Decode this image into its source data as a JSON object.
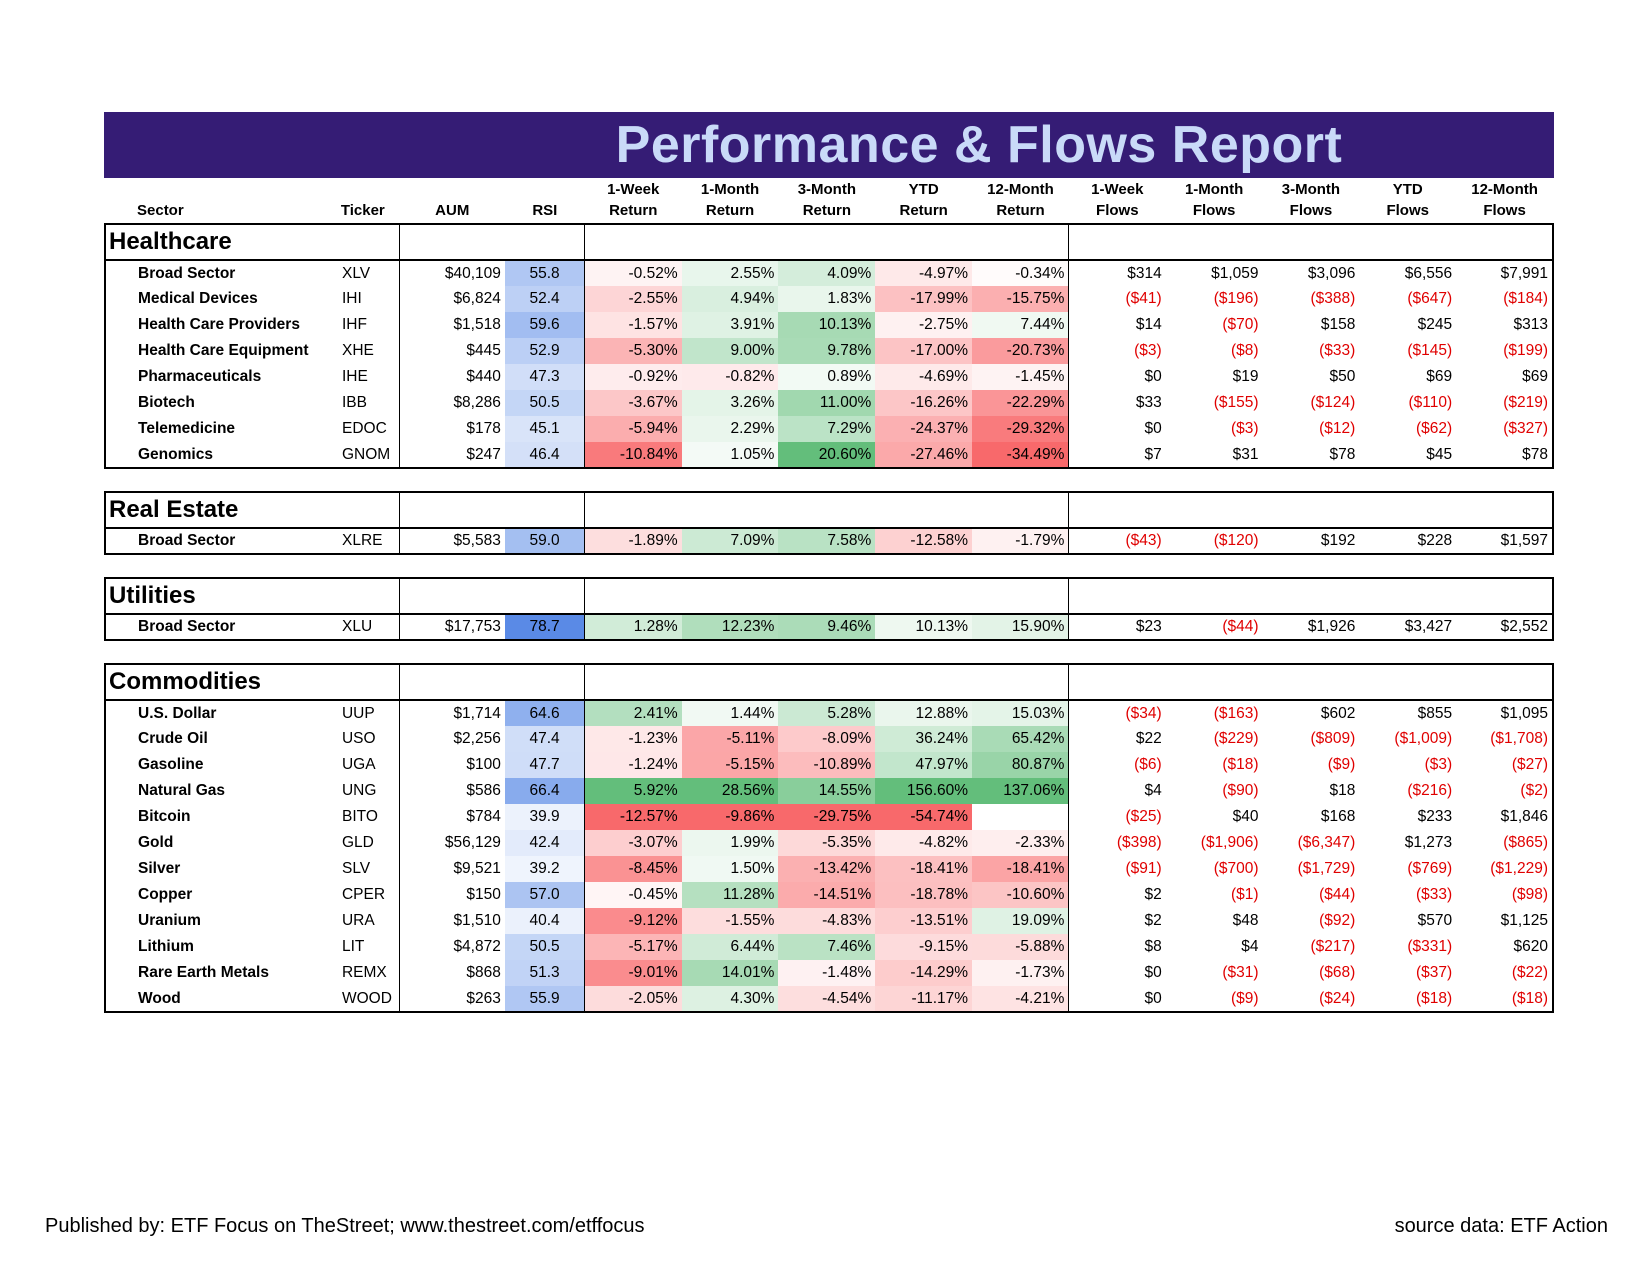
{
  "title": "Performance & Flows Report",
  "columns": [
    "Sector",
    "Ticker",
    "AUM",
    "RSI",
    "1-Week|Return",
    "1-Month|Return",
    "3-Month|Return",
    "YTD|Return",
    "12-Month|Return",
    "1-Week|Flows",
    "1-Month|Flows",
    "3-Month|Flows",
    "YTD|Flows",
    "12-Month|Flows"
  ],
  "groups": [
    {
      "name": "Healthcare",
      "rows": [
        [
          "Broad Sector",
          "XLV",
          "$40,109",
          "55.8",
          "-0.52%",
          "2.55%",
          "4.09%",
          "-4.97%",
          "-0.34%",
          "$314",
          "$1,059",
          "$3,096",
          "$6,556",
          "$7,991"
        ],
        [
          "Medical Devices",
          "IHI",
          "$6,824",
          "52.4",
          "-2.55%",
          "4.94%",
          "1.83%",
          "-17.99%",
          "-15.75%",
          "($41)",
          "($196)",
          "($388)",
          "($647)",
          "($184)"
        ],
        [
          "Health Care Providers",
          "IHF",
          "$1,518",
          "59.6",
          "-1.57%",
          "3.91%",
          "10.13%",
          "-2.75%",
          "7.44%",
          "$14",
          "($70)",
          "$158",
          "$245",
          "$313"
        ],
        [
          "Health Care Equipment",
          "XHE",
          "$445",
          "52.9",
          "-5.30%",
          "9.00%",
          "9.78%",
          "-17.00%",
          "-20.73%",
          "($3)",
          "($8)",
          "($33)",
          "($145)",
          "($199)"
        ],
        [
          "Pharmaceuticals",
          "IHE",
          "$440",
          "47.3",
          "-0.92%",
          "-0.82%",
          "0.89%",
          "-4.69%",
          "-1.45%",
          "$0",
          "$19",
          "$50",
          "$69",
          "$69"
        ],
        [
          "Biotech",
          "IBB",
          "$8,286",
          "50.5",
          "-3.67%",
          "3.26%",
          "11.00%",
          "-16.26%",
          "-22.29%",
          "$33",
          "($155)",
          "($124)",
          "($110)",
          "($219)"
        ],
        [
          "Telemedicine",
          "EDOC",
          "$178",
          "45.1",
          "-5.94%",
          "2.29%",
          "7.29%",
          "-24.37%",
          "-29.32%",
          "$0",
          "($3)",
          "($12)",
          "($62)",
          "($327)"
        ],
        [
          "Genomics",
          "GNOM",
          "$247",
          "46.4",
          "-10.84%",
          "1.05%",
          "20.60%",
          "-27.46%",
          "-34.49%",
          "$7",
          "$31",
          "$78",
          "$45",
          "$78"
        ]
      ]
    },
    {
      "name": "Real Estate",
      "rows": [
        [
          "Broad Sector",
          "XLRE",
          "$5,583",
          "59.0",
          "-1.89%",
          "7.09%",
          "7.58%",
          "-12.58%",
          "-1.79%",
          "($43)",
          "($120)",
          "$192",
          "$228",
          "$1,597"
        ]
      ]
    },
    {
      "name": "Utilities",
      "rows": [
        [
          "Broad Sector",
          "XLU",
          "$17,753",
          "78.7",
          "1.28%",
          "12.23%",
          "9.46%",
          "10.13%",
          "15.90%",
          "$23",
          "($44)",
          "$1,926",
          "$3,427",
          "$2,552"
        ]
      ]
    },
    {
      "name": "Commodities",
      "rows": [
        [
          "U.S. Dollar",
          "UUP",
          "$1,714",
          "64.6",
          "2.41%",
          "1.44%",
          "5.28%",
          "12.88%",
          "15.03%",
          "($34)",
          "($163)",
          "$602",
          "$855",
          "$1,095"
        ],
        [
          "Crude Oil",
          "USO",
          "$2,256",
          "47.4",
          "-1.23%",
          "-5.11%",
          "-8.09%",
          "36.24%",
          "65.42%",
          "$22",
          "($229)",
          "($809)",
          "($1,009)",
          "($1,708)"
        ],
        [
          "Gasoline",
          "UGA",
          "$100",
          "47.7",
          "-1.24%",
          "-5.15%",
          "-10.89%",
          "47.97%",
          "80.87%",
          "($6)",
          "($18)",
          "($9)",
          "($3)",
          "($27)"
        ],
        [
          "Natural Gas",
          "UNG",
          "$586",
          "66.4",
          "5.92%",
          "28.56%",
          "14.55%",
          "156.60%",
          "137.06%",
          "$4",
          "($90)",
          "$18",
          "($216)",
          "($2)"
        ],
        [
          "Bitcoin",
          "BITO",
          "$784",
          "39.9",
          "-12.57%",
          "-9.86%",
          "-29.75%",
          "-54.74%",
          "",
          "($25)",
          "$40",
          "$168",
          "$233",
          "$1,846"
        ],
        [
          "Gold",
          "GLD",
          "$56,129",
          "42.4",
          "-3.07%",
          "1.99%",
          "-5.35%",
          "-4.82%",
          "-2.33%",
          "($398)",
          "($1,906)",
          "($6,347)",
          "$1,273",
          "($865)"
        ],
        [
          "Silver",
          "SLV",
          "$9,521",
          "39.2",
          "-8.45%",
          "1.50%",
          "-13.42%",
          "-18.41%",
          "-18.41%",
          "($91)",
          "($700)",
          "($1,729)",
          "($769)",
          "($1,229)"
        ],
        [
          "Copper",
          "CPER",
          "$150",
          "57.0",
          "-0.45%",
          "11.28%",
          "-14.51%",
          "-18.78%",
          "-10.60%",
          "$2",
          "($1)",
          "($44)",
          "($33)",
          "($98)"
        ],
        [
          "Uranium",
          "URA",
          "$1,510",
          "40.4",
          "-9.12%",
          "-1.55%",
          "-4.83%",
          "-13.51%",
          "19.09%",
          "$2",
          "$48",
          "($92)",
          "$570",
          "$1,125"
        ],
        [
          "Lithium",
          "LIT",
          "$4,872",
          "50.5",
          "-5.17%",
          "6.44%",
          "7.46%",
          "-9.15%",
          "-5.88%",
          "$8",
          "$4",
          "($217)",
          "($331)",
          "$620"
        ],
        [
          "Rare Earth Metals",
          "REMX",
          "$868",
          "51.3",
          "-9.01%",
          "14.01%",
          "-1.48%",
          "-14.29%",
          "-1.73%",
          "$0",
          "($31)",
          "($68)",
          "($37)",
          "($22)"
        ],
        [
          "Wood",
          "WOOD",
          "$263",
          "55.9",
          "-2.05%",
          "4.30%",
          "-4.54%",
          "-11.17%",
          "-4.21%",
          "$0",
          "($9)",
          "($24)",
          "($18)",
          "($18)"
        ]
      ]
    }
  ],
  "footer": {
    "published": "Published by: ETF Focus on TheStreet; www.thestreet.com/etffocus",
    "source": "source data: ETF Action"
  },
  "colors": {
    "title_bg": "#351c75",
    "title_text": "#c9daf8",
    "negative": "#e00000",
    "rsi_blue": "#5a8ae6",
    "heat_green": "#63be7b",
    "heat_red": "#f8696b"
  }
}
